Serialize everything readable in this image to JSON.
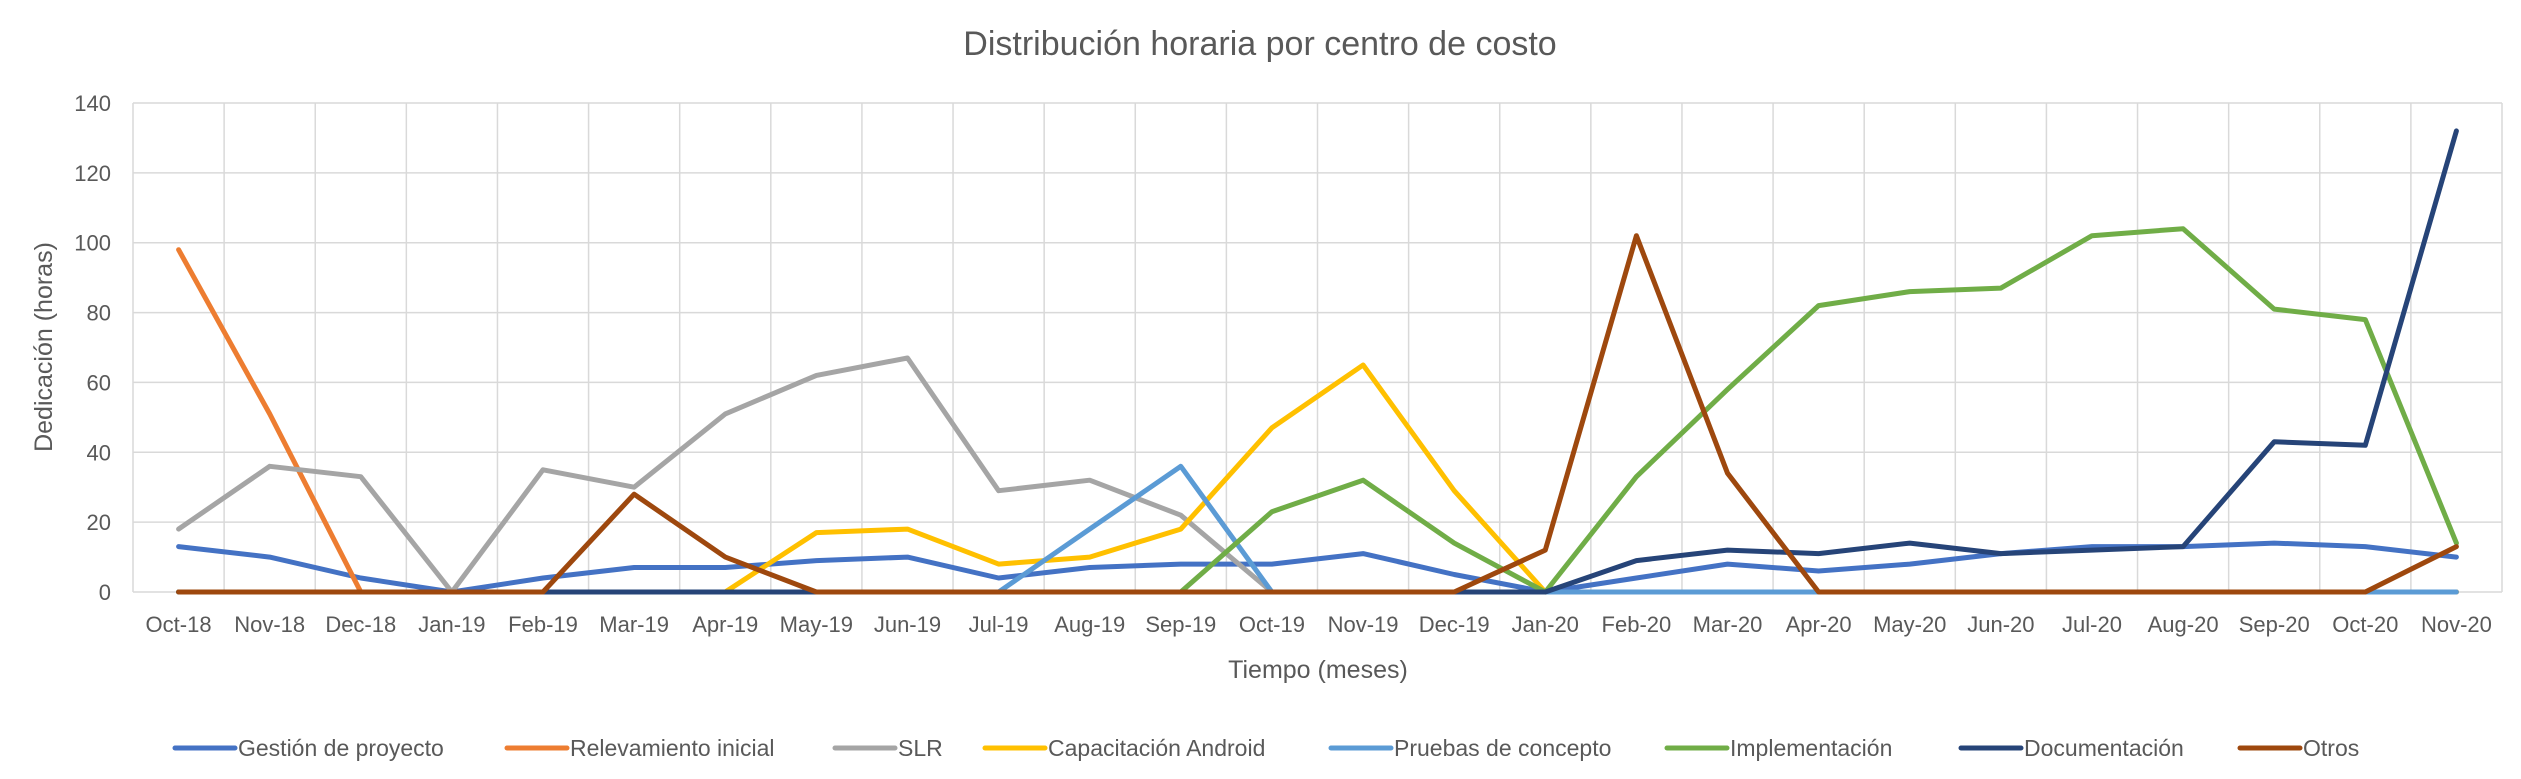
{
  "chart_data": {
    "type": "line",
    "title": "Distribución horaria por centro de costo",
    "xlabel": "Tiempo (meses)",
    "ylabel": "Dedicación (horas)",
    "ylim": [
      0,
      140
    ],
    "yticks": [
      0,
      20,
      40,
      60,
      80,
      100,
      120,
      140
    ],
    "grid": true,
    "legend_position": "bottom",
    "categories": [
      "Oct-18",
      "Nov-18",
      "Dec-18",
      "Jan-19",
      "Feb-19",
      "Mar-19",
      "Apr-19",
      "May-19",
      "Jun-19",
      "Jul-19",
      "Aug-19",
      "Sep-19",
      "Oct-19",
      "Nov-19",
      "Dec-19",
      "Jan-20",
      "Feb-20",
      "Mar-20",
      "Apr-20",
      "May-20",
      "Jun-20",
      "Jul-20",
      "Aug-20",
      "Sep-20",
      "Oct-20",
      "Nov-20"
    ],
    "series": [
      {
        "name": "Gestión de proyecto",
        "color": "#4472c4",
        "values": [
          13,
          10,
          4,
          0,
          4,
          7,
          7,
          9,
          10,
          4,
          7,
          8,
          8,
          11,
          5,
          0,
          4,
          8,
          6,
          8,
          11,
          13,
          13,
          14,
          13,
          10
        ]
      },
      {
        "name": "Relevamiento inicial",
        "color": "#ed7d31",
        "values": [
          98,
          51,
          0,
          0,
          0,
          0,
          0,
          0,
          0,
          0,
          0,
          0,
          0,
          0,
          0,
          0,
          0,
          0,
          0,
          0,
          0,
          0,
          0,
          0,
          0,
          0
        ]
      },
      {
        "name": "SLR",
        "color": "#a5a5a5",
        "values": [
          18,
          36,
          33,
          0,
          35,
          30,
          51,
          62,
          67,
          29,
          32,
          22,
          0,
          0,
          0,
          0,
          0,
          0,
          0,
          0,
          0,
          0,
          0,
          0,
          0,
          0
        ]
      },
      {
        "name": "Capacitación Android",
        "color": "#ffc000",
        "values": [
          0,
          0,
          0,
          0,
          0,
          0,
          0,
          17,
          18,
          8,
          10,
          18,
          47,
          65,
          29,
          0,
          0,
          0,
          0,
          0,
          0,
          0,
          0,
          0,
          0,
          0
        ]
      },
      {
        "name": "Pruebas de concepto",
        "color": "#5b9bd5",
        "values": [
          0,
          0,
          0,
          0,
          0,
          0,
          0,
          0,
          0,
          0,
          18,
          36,
          0,
          0,
          0,
          0,
          0,
          0,
          0,
          0,
          0,
          0,
          0,
          0,
          0,
          0
        ]
      },
      {
        "name": "Implementación",
        "color": "#70ad47",
        "values": [
          0,
          0,
          0,
          0,
          0,
          0,
          0,
          0,
          0,
          0,
          0,
          0,
          23,
          32,
          14,
          0,
          33,
          58,
          82,
          86,
          87,
          102,
          104,
          81,
          78,
          14
        ]
      },
      {
        "name": "Documentación",
        "color": "#264478",
        "values": [
          0,
          0,
          0,
          0,
          0,
          0,
          0,
          0,
          0,
          0,
          0,
          0,
          0,
          0,
          0,
          0,
          9,
          12,
          11,
          14,
          11,
          12,
          13,
          43,
          42,
          132
        ]
      },
      {
        "name": "Otros",
        "color": "#9e480e",
        "values": [
          0,
          0,
          0,
          0,
          0,
          28,
          10,
          0,
          0,
          0,
          0,
          0,
          0,
          0,
          0,
          12,
          102,
          34,
          0,
          0,
          0,
          0,
          0,
          0,
          0,
          13
        ]
      }
    ]
  }
}
